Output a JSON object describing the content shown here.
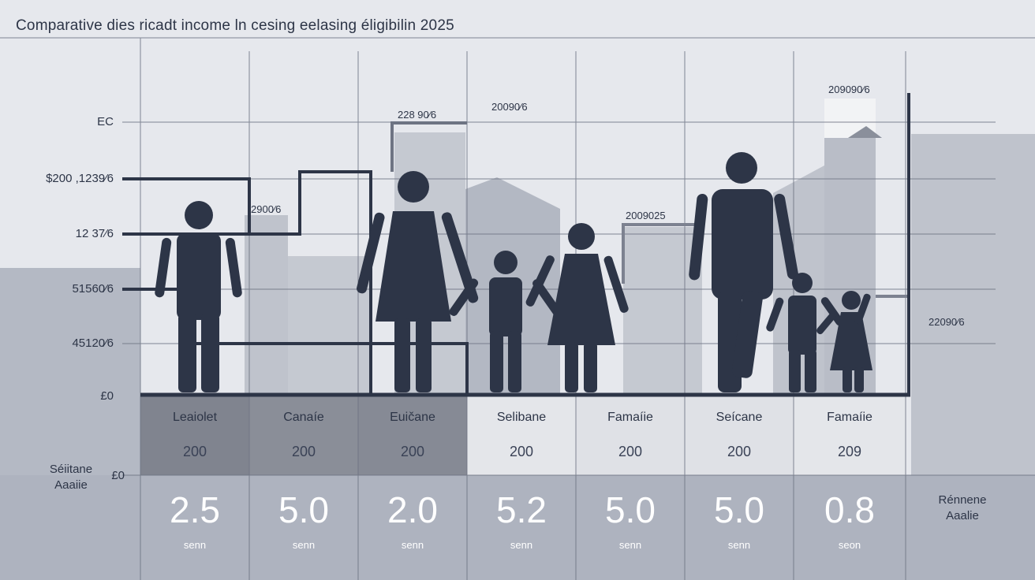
{
  "title": "Comparative dies ricadt income ln cesing eelasing éligibilin 2025",
  "colors": {
    "background": "#e6e8ed",
    "figure": "#2d3547",
    "mid_band": "#aeb3bf",
    "dark_cell": "#80848f",
    "light_cell": "#e4e6ea"
  },
  "chart_data": {
    "type": "table",
    "y_tick_labels": [
      "EC",
      "$200 ,1239⁄6",
      "12 37⁄6",
      "51560⁄6",
      "45120⁄6",
      "£0"
    ],
    "annotations": [
      "228 90⁄6",
      "20090⁄6",
      "2900⁄6",
      "2009025",
      "209090⁄6",
      "22090⁄6"
    ],
    "categories": [
      "Leaiolet",
      "Canaíe",
      "Euičane",
      "Selibane",
      "Famaíie",
      "Seícane",
      "Famaíie"
    ],
    "counts": [
      "200",
      "200",
      "200",
      "200",
      "200",
      "200",
      "209"
    ],
    "values": [
      2.5,
      5.0,
      2.0,
      5.2,
      5.0,
      5.0,
      0.8
    ],
    "value_labels": [
      "2.5",
      "5.0",
      "2.0",
      "5.2",
      "5.0",
      "5.0",
      "0.8"
    ],
    "value_units": [
      "senn",
      "senn",
      "senn",
      "senn",
      "senn",
      "senn",
      "seon"
    ],
    "lower_zero_label": "£0",
    "row_label_left": [
      "Séiitane",
      "Aaaiie"
    ],
    "row_label_right": [
      "Rénnene",
      "Aaalie"
    ]
  }
}
